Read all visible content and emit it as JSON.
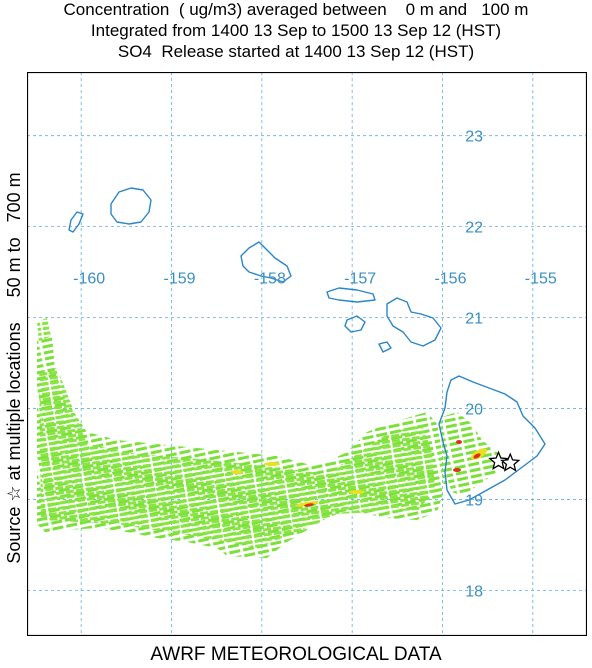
{
  "title": {
    "line1": "Concentration  ( ug/m3) averaged between    0 m and   100 m",
    "line2": "Integrated from 1400 13 Sep to 1500 13 Sep 12 (HST)",
    "line3": "SO4  Release started at 1400 13 Sep 12 (HST)"
  },
  "side_label": "Source ☆ at multiple locations     50 m to   700 m",
  "bottom_label": "AWRF METEOROLOGICAL DATA",
  "map": {
    "longitude_labels": [
      "-160",
      "-159",
      "-158",
      "-157",
      "-156",
      "-155"
    ],
    "longitude_values": [
      -160,
      -159,
      -158,
      -157,
      -156,
      -155
    ],
    "latitude_labels": [
      "23",
      "22",
      "21",
      "20",
      "19",
      "18"
    ],
    "latitude_values": [
      23,
      22,
      21,
      20,
      19,
      18
    ],
    "lon_range": [
      -160.6,
      -154.4
    ],
    "lat_range": [
      17.5,
      23.7
    ],
    "gridlines": "dashed",
    "source_markers": [
      {
        "lon": -155.38,
        "lat": 19.42
      },
      {
        "lon": -155.25,
        "lat": 19.4
      }
    ],
    "colors": {
      "grid": "#66aee0",
      "coast": "#2a86c8",
      "plume_low": "#7be03a",
      "plume_mid": "#e8e020",
      "plume_high": "#e03018",
      "frame": "#000000",
      "labels": "#3a8fc0"
    }
  }
}
